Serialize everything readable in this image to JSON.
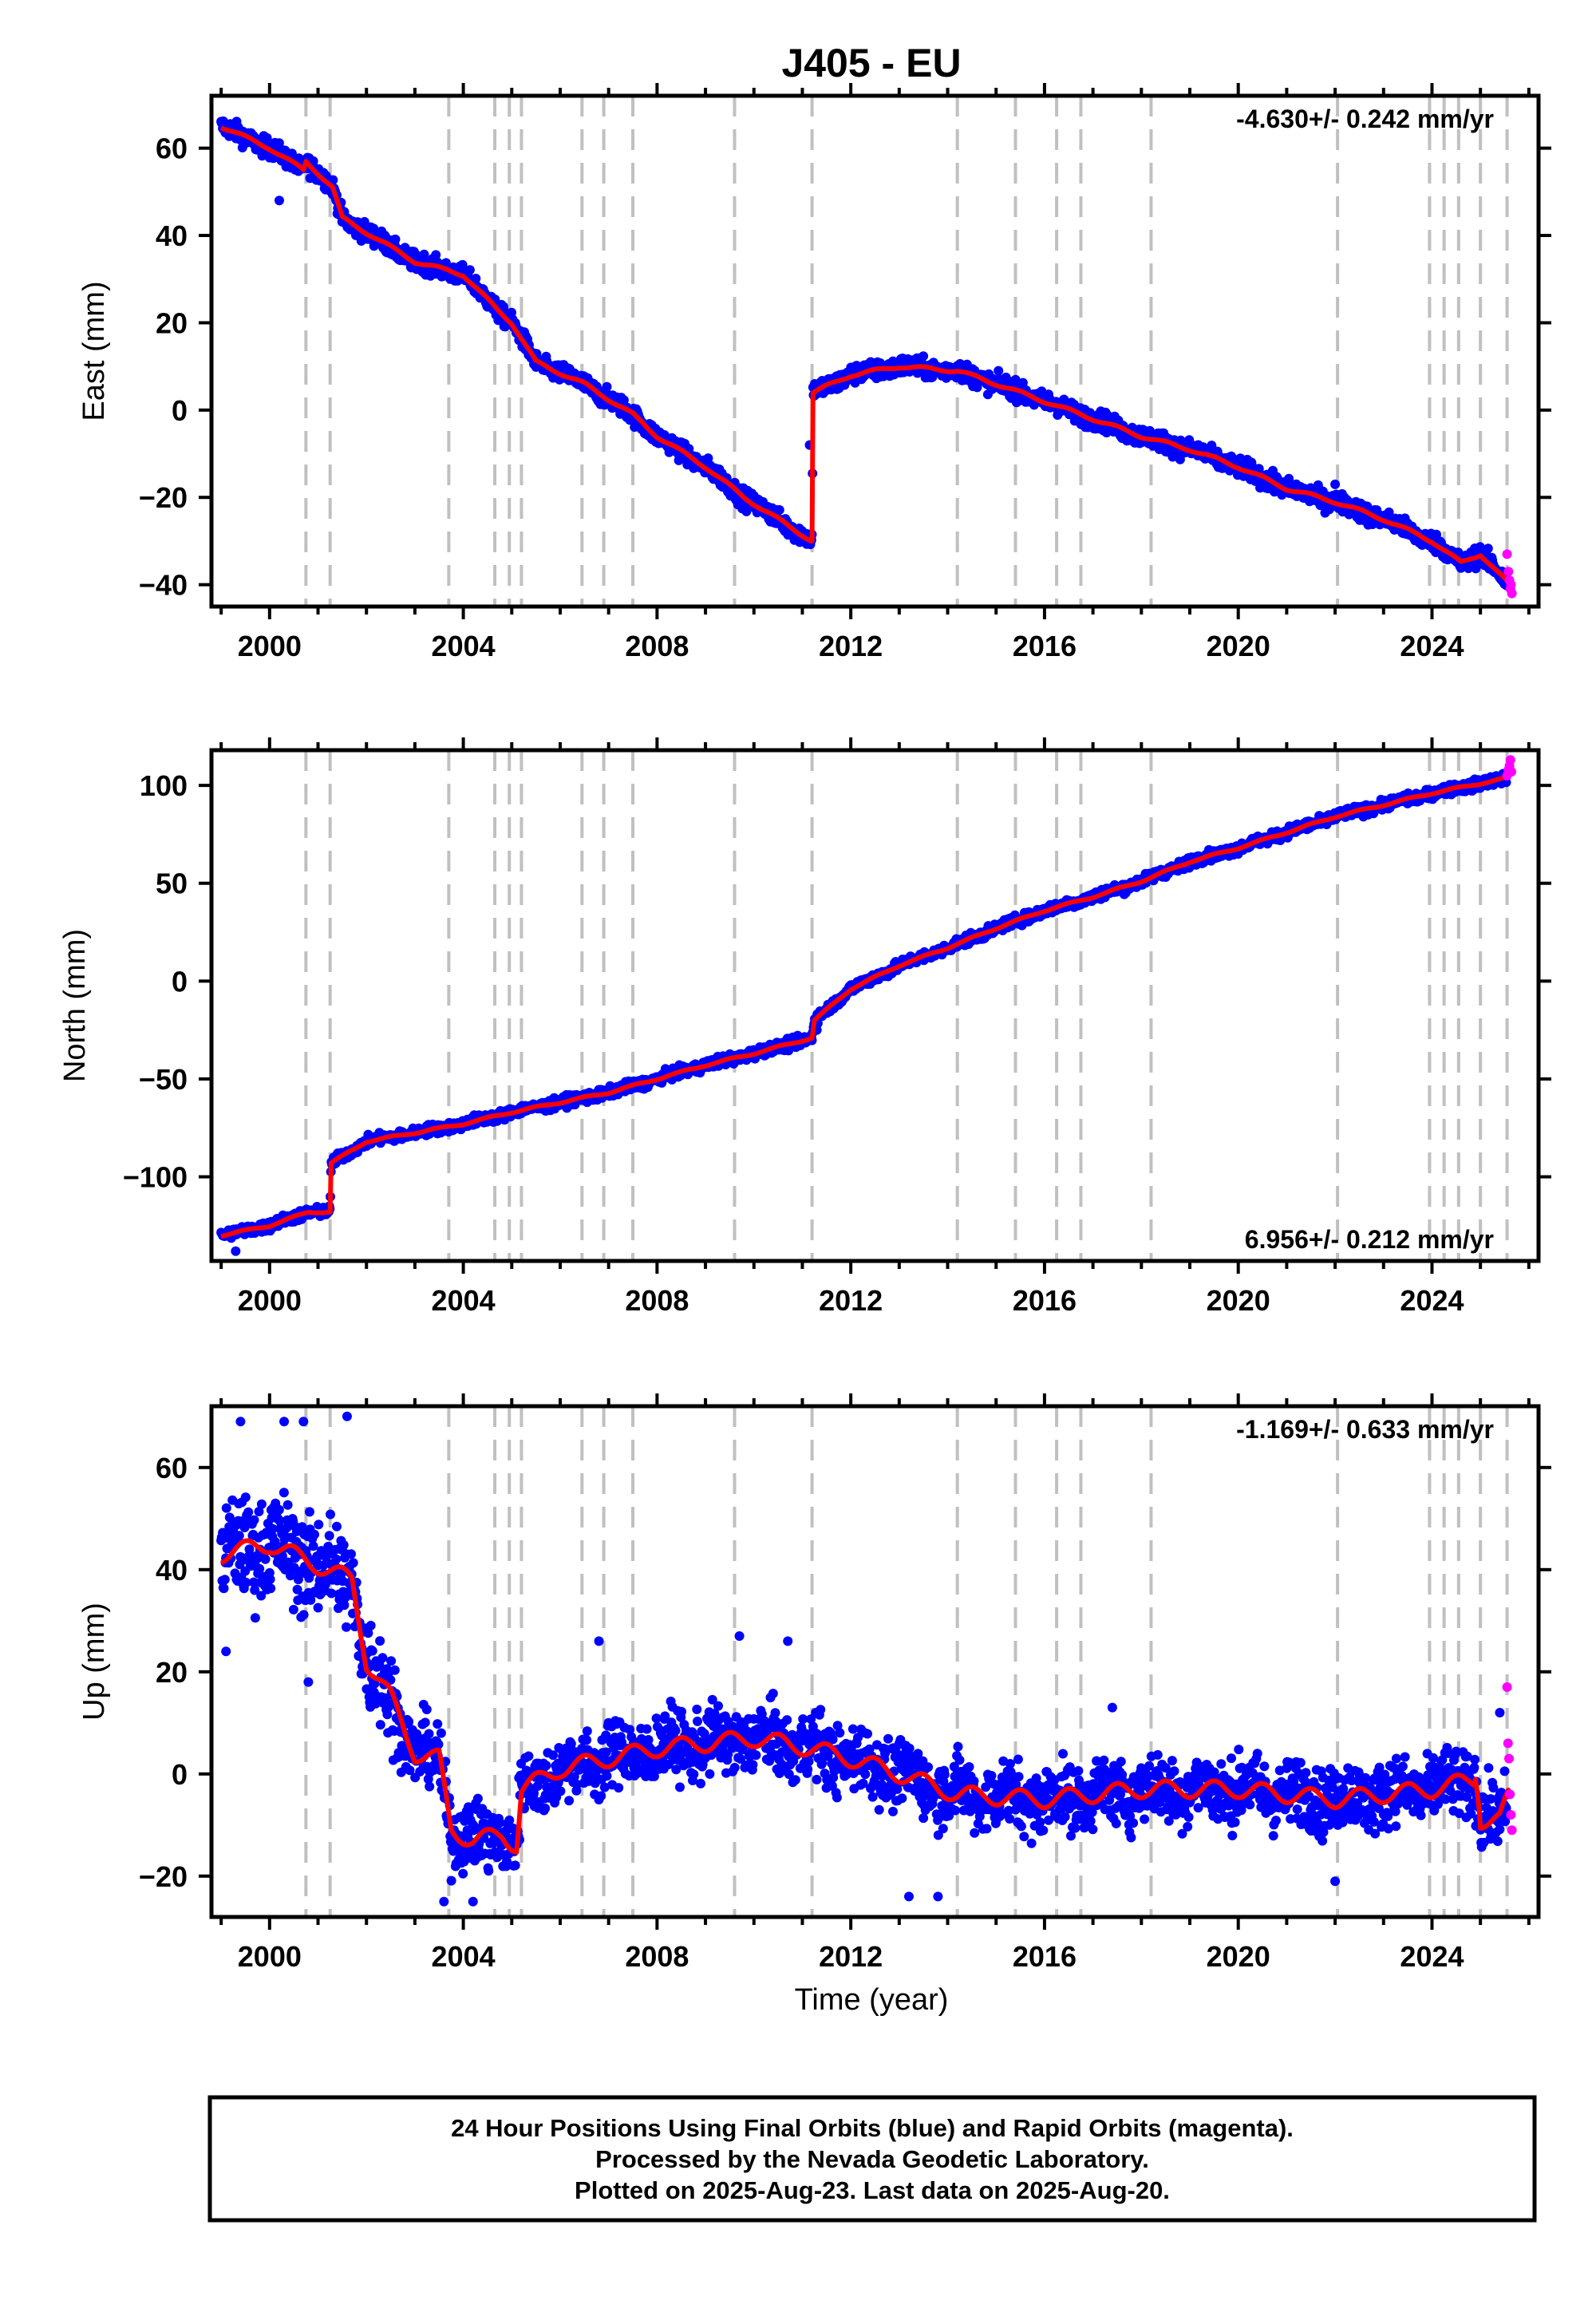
{
  "title": "J405 - EU",
  "x_axis": {
    "label": "Time (year)",
    "range": [
      1998.8,
      2026.2
    ],
    "ticks": [
      "2000",
      "2004",
      "2008",
      "2012",
      "2016",
      "2020",
      "2024"
    ],
    "tick_values": [
      2000,
      2004,
      2008,
      2012,
      2016,
      2020,
      2024
    ],
    "events": [
      2000.75,
      2001.25,
      2003.7,
      2004.65,
      2004.95,
      2005.2,
      2006.45,
      2006.9,
      2007.5,
      2009.6,
      2011.2,
      2014.2,
      2015.4,
      2016.25,
      2016.75,
      2018.2,
      2022.05,
      2023.95,
      2024.25,
      2024.55,
      2025.0,
      2025.55
    ]
  },
  "colors": {
    "final": "#0000ff",
    "rapid": "#ff00ff",
    "model": "#ff0000",
    "event": "#c0c0c0"
  },
  "chart_data": [
    {
      "type": "scatter",
      "component": "East",
      "ylabel": "East (mm)",
      "ylim": [
        -45,
        72
      ],
      "yticks": [
        -40,
        -20,
        0,
        20,
        40,
        60
      ],
      "ytick_labels": [
        "−40",
        "−20",
        "0",
        "20",
        "40",
        "60"
      ],
      "rate_label": "-4.630+/- 0.242 mm/yr",
      "rate_position": "top-right",
      "rate": -4.63,
      "rate_sigma": 0.242,
      "model_points": [
        [
          1999.0,
          65
        ],
        [
          2000.0,
          60
        ],
        [
          2000.7,
          55
        ],
        [
          2000.75,
          57
        ],
        [
          2001.3,
          51
        ],
        [
          2001.5,
          44
        ],
        [
          2003.0,
          34
        ],
        [
          2004.0,
          31
        ],
        [
          2004.7,
          23
        ],
        [
          2005.0,
          20
        ],
        [
          2005.5,
          11
        ],
        [
          2006.5,
          6
        ],
        [
          2007.5,
          -1
        ],
        [
          2008.0,
          -6
        ],
        [
          2009.0,
          -13
        ],
        [
          2009.8,
          -20
        ],
        [
          2011.2,
          -30
        ],
        [
          2011.22,
          4
        ],
        [
          2012.0,
          8
        ],
        [
          2013.0,
          10
        ],
        [
          2014.2,
          9
        ],
        [
          2015.0,
          6
        ],
        [
          2016.0,
          2
        ],
        [
          2017.0,
          -2
        ],
        [
          2018.0,
          -6
        ],
        [
          2019.0,
          -9
        ],
        [
          2020.0,
          -13
        ],
        [
          2021.0,
          -18
        ],
        [
          2022.0,
          -21
        ],
        [
          2023.0,
          -25
        ],
        [
          2024.0,
          -30
        ],
        [
          2024.6,
          -35
        ],
        [
          2025.0,
          -33
        ],
        [
          2025.6,
          -40
        ]
      ],
      "scatter_sigma": 1.5,
      "seasonal_amplitude": 1.2,
      "outliers": [
        [
          2000.2,
          48
        ],
        [
          2011.15,
          -8
        ],
        [
          2022.0,
          -17
        ],
        [
          2004.3,
          27
        ]
      ],
      "rapid_points": [
        [
          2025.55,
          -33
        ],
        [
          2025.58,
          -37
        ],
        [
          2025.6,
          -39
        ],
        [
          2025.62,
          -41
        ],
        [
          2025.63,
          -40
        ],
        [
          2025.65,
          -42
        ]
      ]
    },
    {
      "type": "scatter",
      "component": "North",
      "ylabel": "North (mm)",
      "ylim": [
        -143,
        118
      ],
      "yticks": [
        -100,
        -50,
        0,
        50,
        100
      ],
      "ytick_labels": [
        "−100",
        "−50",
        "0",
        "50",
        "100"
      ],
      "rate_label": "6.956+/- 0.212 mm/yr",
      "rate_position": "bottom-right",
      "rate": 6.956,
      "rate_sigma": 0.212,
      "model_points": [
        [
          1999.0,
          -130
        ],
        [
          2000.0,
          -125
        ],
        [
          2000.8,
          -118
        ],
        [
          2001.25,
          -118
        ],
        [
          2001.27,
          -93
        ],
        [
          2002.0,
          -82
        ],
        [
          2004.0,
          -73
        ],
        [
          2005.0,
          -67
        ],
        [
          2006.0,
          -62
        ],
        [
          2007.0,
          -57
        ],
        [
          2008.0,
          -50
        ],
        [
          2009.0,
          -43
        ],
        [
          2010.0,
          -37
        ],
        [
          2011.2,
          -29
        ],
        [
          2011.25,
          -20
        ],
        [
          2012.0,
          -4
        ],
        [
          2013.0,
          8
        ],
        [
          2014.0,
          17
        ],
        [
          2015.0,
          27
        ],
        [
          2016.0,
          36
        ],
        [
          2017.0,
          43
        ],
        [
          2018.0,
          51
        ],
        [
          2019.0,
          61
        ],
        [
          2020.0,
          68
        ],
        [
          2021.0,
          76
        ],
        [
          2022.0,
          84
        ],
        [
          2023.0,
          90
        ],
        [
          2024.0,
          96
        ],
        [
          2025.0,
          101
        ],
        [
          2025.6,
          104
        ]
      ],
      "scatter_sigma": 1.8,
      "seasonal_amplitude": 1.5,
      "outliers": [
        [
          1999.3,
          -138
        ],
        [
          2011.3,
          -25
        ]
      ],
      "rapid_points": [
        [
          2025.55,
          105
        ],
        [
          2025.58,
          108
        ],
        [
          2025.6,
          110
        ],
        [
          2025.62,
          113
        ],
        [
          2025.64,
          107
        ]
      ]
    },
    {
      "type": "scatter",
      "component": "Up",
      "ylabel": "Up (mm)",
      "ylim": [
        -28,
        72
      ],
      "yticks": [
        -20,
        0,
        20,
        40,
        60
      ],
      "ytick_labels": [
        "−20",
        "0",
        "20",
        "40",
        "60"
      ],
      "rate_label": "-1.169+/- 0.633 mm/yr",
      "rate_position": "top-right",
      "rate": -1.169,
      "rate_sigma": 0.633,
      "model_points": [
        [
          1999.0,
          43
        ],
        [
          2000.0,
          45
        ],
        [
          2001.2,
          40
        ],
        [
          2001.7,
          38
        ],
        [
          2002.0,
          22
        ],
        [
          2002.5,
          15
        ],
        [
          2003.0,
          4
        ],
        [
          2003.5,
          3
        ],
        [
          2003.75,
          -11
        ],
        [
          2004.2,
          -13
        ],
        [
          2004.8,
          -12
        ],
        [
          2005.1,
          -14
        ],
        [
          2005.2,
          -3
        ],
        [
          2006.0,
          1
        ],
        [
          2008.0,
          5
        ],
        [
          2010.0,
          7
        ],
        [
          2011.2,
          5
        ],
        [
          2012.0,
          3
        ],
        [
          2013.0,
          0
        ],
        [
          2014.2,
          -4
        ],
        [
          2016.0,
          -5
        ],
        [
          2018.0,
          -3
        ],
        [
          2020.0,
          -3
        ],
        [
          2022.0,
          -5
        ],
        [
          2024.0,
          -3
        ],
        [
          2024.9,
          -1
        ],
        [
          2025.0,
          -9
        ],
        [
          2025.4,
          -9
        ],
        [
          2025.6,
          -4
        ]
      ],
      "scatter_sigma": 4.5,
      "seasonal_amplitude": 5.5,
      "outliers": [
        [
          1999.4,
          69
        ],
        [
          2000.3,
          69
        ],
        [
          2000.7,
          69
        ],
        [
          2001.6,
          70
        ],
        [
          2000.8,
          18
        ],
        [
          1999.1,
          24
        ],
        [
          2003.6,
          -25
        ],
        [
          2004.2,
          -25
        ],
        [
          2006.8,
          26
        ],
        [
          2009.7,
          27
        ],
        [
          2010.7,
          26
        ],
        [
          2013.2,
          -24
        ],
        [
          2013.8,
          -24
        ],
        [
          2022.0,
          -21
        ],
        [
          2017.4,
          13
        ],
        [
          2025.4,
          12
        ]
      ],
      "rapid_points": [
        [
          2025.55,
          17
        ],
        [
          2025.57,
          6
        ],
        [
          2025.59,
          3
        ],
        [
          2025.61,
          -4
        ],
        [
          2025.63,
          -8
        ],
        [
          2025.65,
          -11
        ]
      ]
    }
  ],
  "footer": {
    "line1": "24 Hour Positions Using Final Orbits (blue) and Rapid Orbits (magenta).",
    "line2": "Processed by the Nevada Geodetic Laboratory.",
    "line3": "Plotted on 2025-Aug-23. Last data on 2025-Aug-20."
  }
}
